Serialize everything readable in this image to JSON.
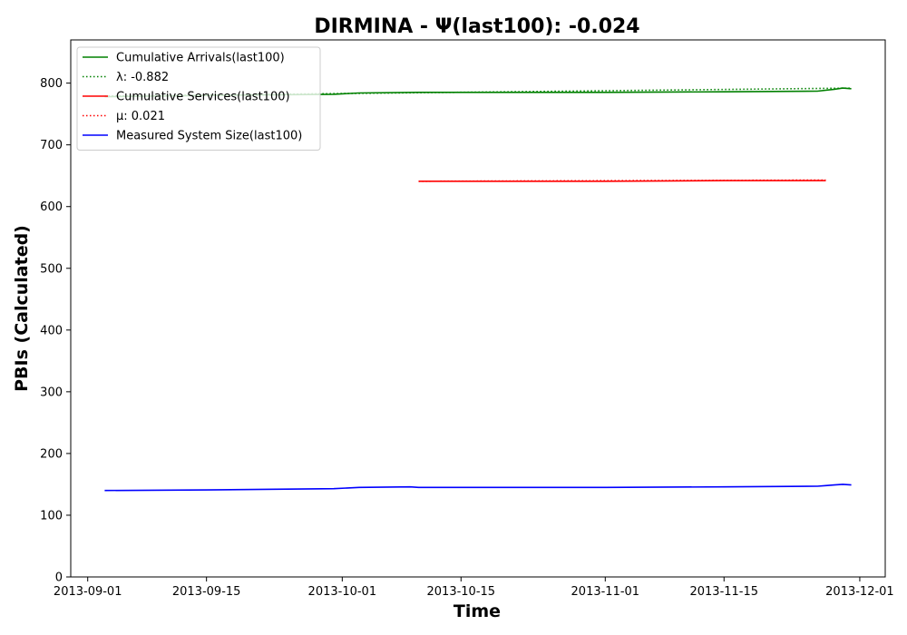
{
  "chart_data": {
    "type": "line",
    "title": "DIRMINA -  Ψ(last100): -0.024",
    "xlabel": "Time",
    "ylabel": "PBIs (Calculated)",
    "xlim": [
      "2013-08-30",
      "2013-12-04"
    ],
    "ylim": [
      0,
      870
    ],
    "x_ticks": [
      "2013-09-01",
      "2013-09-15",
      "2013-10-01",
      "2013-10-15",
      "2013-11-01",
      "2013-11-15",
      "2013-12-01"
    ],
    "y_ticks": [
      0,
      100,
      200,
      300,
      400,
      500,
      600,
      700,
      800
    ],
    "grid": false,
    "legend_position": "upper-left",
    "series": [
      {
        "name": "Cumulative Arrivals(last100)",
        "color": "#008000",
        "style": "solid",
        "x": [
          "2013-09-03",
          "2013-09-15",
          "2013-09-30",
          "2013-10-03",
          "2013-10-10",
          "2013-10-20",
          "2013-11-01",
          "2013-11-15",
          "2013-11-26",
          "2013-11-28",
          "2013-11-29",
          "2013-11-30"
        ],
        "y": [
          778,
          780,
          782,
          784,
          785,
          785,
          785,
          786,
          787,
          790,
          792,
          791
        ]
      },
      {
        "name": "λ: -0.882",
        "color": "#008000",
        "style": "dotted",
        "x": [
          "2013-09-03",
          "2013-11-30"
        ],
        "y": [
          779,
          792
        ]
      },
      {
        "name": "Cumulative Services(last100)",
        "color": "#ff0000",
        "style": "solid",
        "x": [
          "2013-10-10",
          "2013-10-20",
          "2013-11-01",
          "2013-11-15",
          "2013-11-27"
        ],
        "y": [
          641,
          641,
          641,
          642,
          642
        ]
      },
      {
        "name": "μ: 0.021",
        "color": "#ff0000",
        "style": "dotted",
        "x": [
          "2013-10-10",
          "2013-11-27"
        ],
        "y": [
          641,
          643
        ]
      },
      {
        "name": "Measured System Size(last100)",
        "color": "#0000ff",
        "style": "solid",
        "x": [
          "2013-09-03",
          "2013-09-15",
          "2013-09-30",
          "2013-10-03",
          "2013-10-09",
          "2013-10-10",
          "2013-10-20",
          "2013-11-01",
          "2013-11-15",
          "2013-11-26",
          "2013-11-27",
          "2013-11-28",
          "2013-11-29",
          "2013-11-30"
        ],
        "y": [
          140,
          141,
          143,
          145,
          146,
          145,
          145,
          145,
          146,
          147,
          148,
          149,
          150,
          149
        ]
      }
    ]
  }
}
